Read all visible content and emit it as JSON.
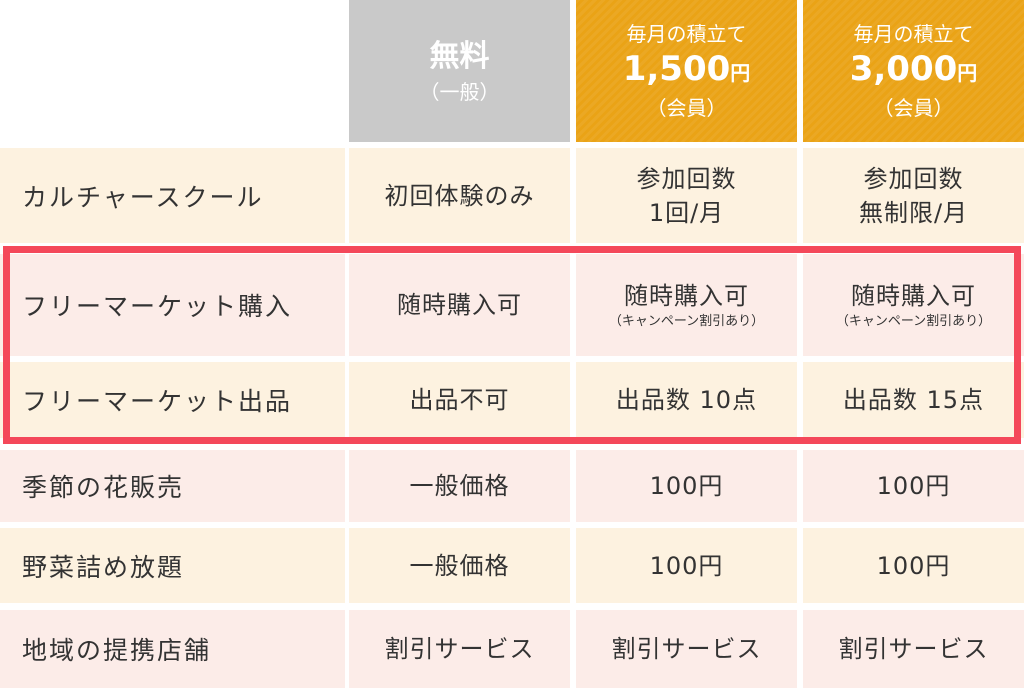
{
  "header": {
    "free": {
      "title": "無料",
      "sub": "（一般）"
    },
    "plan1": {
      "line1": "毎月の積立て",
      "price": "1,500",
      "unit": "円",
      "sub": "（会員）"
    },
    "plan2": {
      "line1": "毎月の積立て",
      "price": "3,000",
      "unit": "円",
      "sub": "（会員）"
    }
  },
  "rows": [
    {
      "label": "カルチャースクール",
      "free": "初回体験のみ",
      "p1": "参加回数",
      "p1b": "1回/月",
      "p2": "参加回数",
      "p2b": "無制限/月"
    },
    {
      "label": "フリーマーケット購入",
      "free": "随時購入可",
      "p1": "随時購入可",
      "p1b": "（キャンペーン割引あり）",
      "p2": "随時購入可",
      "p2b": "（キャンペーン割引あり）"
    },
    {
      "label": "フリーマーケット出品",
      "free": "出品不可",
      "p1": "出品数 10点",
      "p2": "出品数 15点"
    },
    {
      "label": "季節の花販売",
      "free": "一般価格",
      "p1": "100円",
      "p2": "100円"
    },
    {
      "label": "野菜詰め放題",
      "free": "一般価格",
      "p1": "100円",
      "p2": "100円"
    },
    {
      "label": "地域の提携店舗",
      "free": "割引サービス",
      "p1": "割引サービス",
      "p2": "割引サービス"
    }
  ],
  "colors": {
    "gold": "#eaa316",
    "gray": "#c9c9c9",
    "highlight": "#f4485a",
    "cream": "#fdf2e0",
    "pink": "#fcece8"
  }
}
